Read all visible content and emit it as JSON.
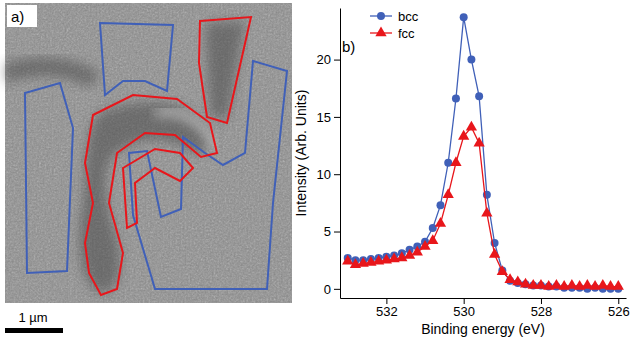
{
  "image": {
    "label": "a)",
    "scale_bar": "1 µm"
  },
  "chart_data": {
    "type": "line",
    "panel_label": "b)",
    "x_label": "Binding energy (eV)",
    "y_label": "Intensity (Arb. Units)",
    "x": [
      533.0,
      532.8,
      532.6,
      532.4,
      532.2,
      532.0,
      531.8,
      531.6,
      531.4,
      531.2,
      531.0,
      530.8,
      530.6,
      530.4,
      530.2,
      530.0,
      529.8,
      529.6,
      529.4,
      529.2,
      529.0,
      528.8,
      528.6,
      528.4,
      528.2,
      528.0,
      527.8,
      527.6,
      527.4,
      527.2,
      527.0,
      526.8,
      526.6,
      526.4,
      526.2,
      526.0
    ],
    "series": [
      {
        "name": "bcc",
        "color": "#4060b8",
        "marker": "circle",
        "values": [
          2.7,
          2.5,
          2.5,
          2.6,
          2.7,
          2.8,
          2.9,
          3.1,
          3.4,
          3.7,
          4.1,
          5.3,
          7.3,
          11.0,
          16.6,
          23.7,
          20.0,
          16.8,
          8.2,
          4.0,
          1.6,
          0.7,
          0.5,
          0.4,
          0.3,
          0.3,
          0.2,
          0.2,
          0.1,
          0.1,
          0.1,
          0.0,
          0.1,
          0.0,
          0.0,
          0.0
        ]
      },
      {
        "name": "fcc",
        "color": "#e8161b",
        "marker": "triangle",
        "values": [
          2.4,
          2.1,
          2.2,
          2.3,
          2.4,
          2.5,
          2.6,
          2.7,
          2.9,
          3.2,
          3.7,
          4.2,
          5.7,
          8.2,
          11.0,
          13.3,
          14.1,
          12.7,
          6.6,
          3.0,
          1.5,
          0.8,
          0.6,
          0.4,
          0.3,
          0.3,
          0.2,
          0.3,
          0.2,
          0.3,
          0.2,
          0.3,
          0.2,
          0.3,
          0.2,
          0.2
        ]
      }
    ],
    "xlim": [
      533.2,
      525.8
    ],
    "xticks": [
      532,
      530,
      528,
      526
    ],
    "ylim": [
      -0.8,
      24.5
    ],
    "yticks": [
      0,
      5,
      10,
      15,
      20
    ],
    "legend": "upper left",
    "grid": false
  }
}
